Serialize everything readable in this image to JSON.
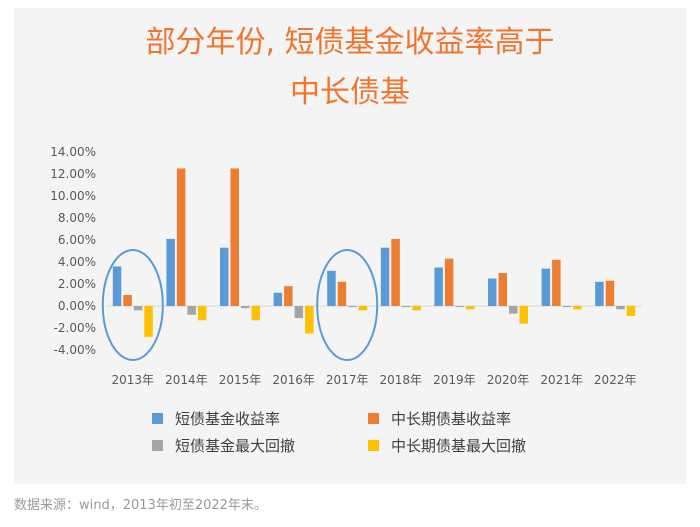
{
  "title_line1": "部分年份, 短债基金收益率高于",
  "title_line2": "中长债基",
  "source_note": "数据来源：wind，2013年初至2022年末。",
  "chart_data": {
    "type": "bar",
    "categories": [
      "2013年",
      "2014年",
      "2015年",
      "2016年",
      "2017年",
      "2018年",
      "2019年",
      "2020年",
      "2021年",
      "2022年"
    ],
    "series": [
      {
        "name": "短债基金收益率",
        "color": "#5b9bd5",
        "values": [
          3.6,
          6.1,
          5.3,
          1.2,
          3.2,
          5.3,
          3.5,
          2.5,
          3.4,
          2.2
        ]
      },
      {
        "name": "中长期债基收益率",
        "color": "#ed7d31",
        "values": [
          1.0,
          12.5,
          12.5,
          1.8,
          2.2,
          6.1,
          4.3,
          3.0,
          4.2,
          2.3
        ]
      },
      {
        "name": "短债基金最大回撤",
        "color": "#a5a5a5",
        "values": [
          -0.4,
          -0.8,
          -0.2,
          -1.1,
          -0.1,
          -0.1,
          -0.1,
          -0.7,
          -0.1,
          -0.3
        ]
      },
      {
        "name": "中长期债基最大回撤",
        "color": "#ffc000",
        "values": [
          -2.8,
          -1.3,
          -1.3,
          -2.5,
          -0.4,
          -0.4,
          -0.3,
          -1.6,
          -0.3,
          -0.9
        ]
      }
    ],
    "yticks": [
      "14.00%",
      "12.00%",
      "10.00%",
      "8.00%",
      "6.00%",
      "4.00%",
      "2.00%",
      "0.00%",
      "-2.00%",
      "-4.00%"
    ],
    "ylim": [
      -4,
      14
    ],
    "highlight_color": "#5b9bd5",
    "highlighted_categories": [
      "2013年",
      "2017年"
    ],
    "legend_placement": "bottom",
    "grid": false
  }
}
